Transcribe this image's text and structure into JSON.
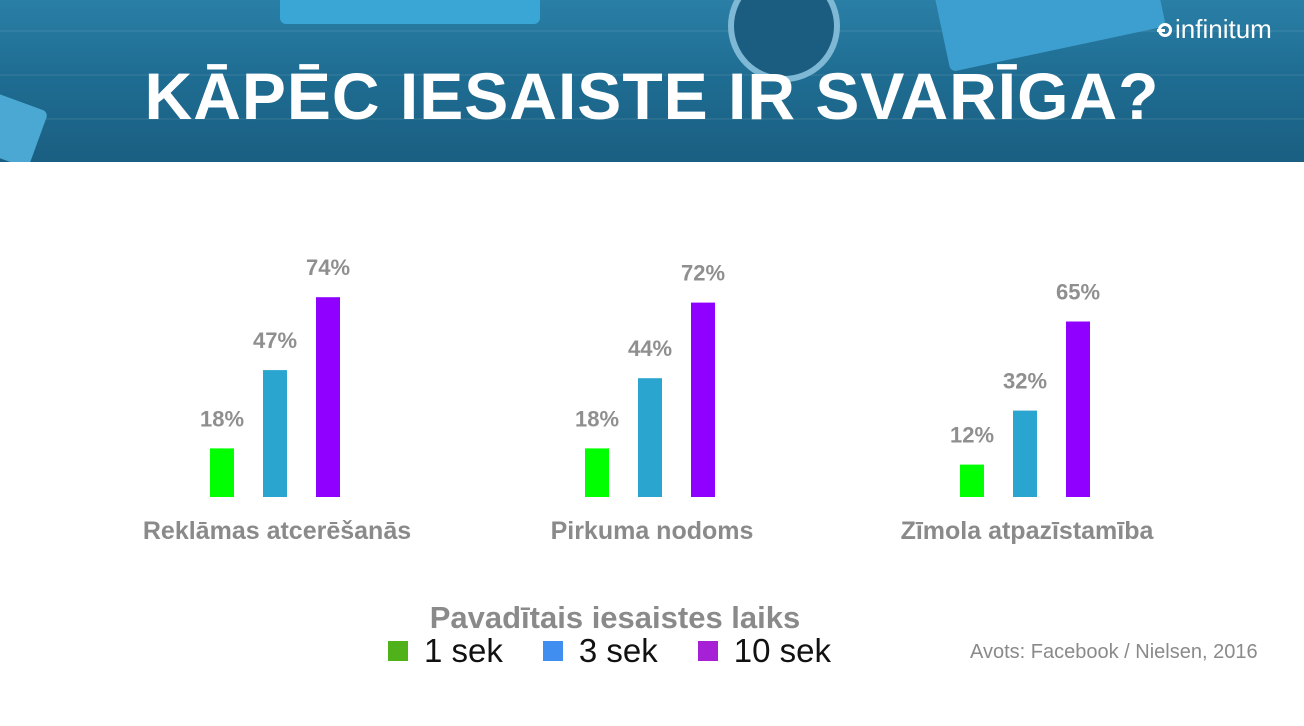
{
  "header": {
    "title": "KĀPĒC IESAISTE IR SVARĪGA?",
    "logo_text": "infinitum",
    "background_color": "#1f6d93"
  },
  "chart_data": {
    "type": "bar",
    "title": "KĀPĒC IESAISTE IR SVARĪGA?",
    "categories": [
      "Reklāmas atcerēšanās",
      "Pirkuma nodoms",
      "Zīmola atpazīstamība"
    ],
    "series": [
      {
        "name": "1 sek",
        "values": [
          18,
          18,
          12
        ],
        "color": "#00ff00",
        "legend_color": "#4fb21a"
      },
      {
        "name": "3 sek",
        "values": [
          47,
          44,
          32
        ],
        "color": "#2aa5cf",
        "legend_color": "#3f8ef0"
      },
      {
        "name": "10 sek",
        "values": [
          74,
          72,
          65
        ],
        "color": "#8f00ff",
        "legend_color": "#a620d6"
      }
    ],
    "value_suffix": "%",
    "ylim": [
      0,
      100
    ],
    "grid": false,
    "legend_title": "Pavadītais iesaistes laiks",
    "legend_position": "bottom",
    "xlabel": "",
    "ylabel": ""
  },
  "source": "Avots: Facebook / Nielsen, 2016"
}
